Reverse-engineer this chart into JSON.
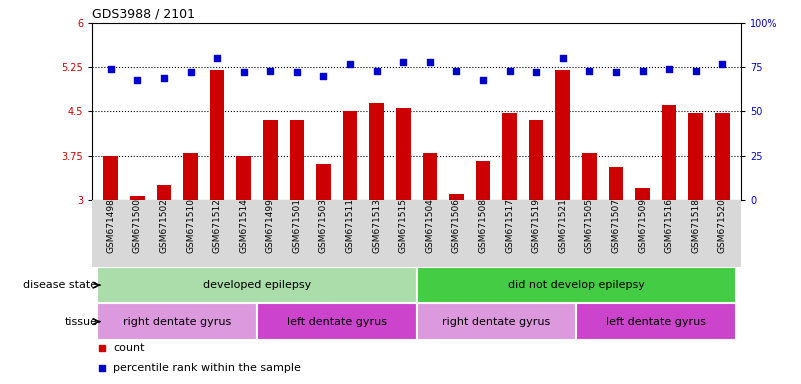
{
  "title": "GDS3988 / 2101",
  "samples": [
    "GSM671498",
    "GSM671500",
    "GSM671502",
    "GSM671510",
    "GSM671512",
    "GSM671514",
    "GSM671499",
    "GSM671501",
    "GSM671503",
    "GSM671511",
    "GSM671513",
    "GSM671515",
    "GSM671504",
    "GSM671506",
    "GSM671508",
    "GSM671517",
    "GSM671519",
    "GSM671521",
    "GSM671505",
    "GSM671507",
    "GSM671509",
    "GSM671516",
    "GSM671518",
    "GSM671520"
  ],
  "bar_values": [
    3.75,
    3.07,
    3.25,
    3.8,
    5.2,
    3.75,
    4.35,
    4.35,
    3.6,
    4.5,
    4.65,
    4.55,
    3.8,
    3.1,
    3.65,
    4.47,
    4.35,
    5.2,
    3.8,
    3.55,
    3.2,
    4.6,
    4.47,
    4.47
  ],
  "dot_values_pct": [
    74,
    68,
    69,
    72,
    80,
    72,
    73,
    72,
    70,
    77,
    73,
    78,
    78,
    73,
    68,
    73,
    72,
    80,
    73,
    72,
    73,
    74,
    73,
    77
  ],
  "ylim_left": [
    3.0,
    6.0
  ],
  "ylim_right": [
    0,
    100
  ],
  "yticks_left": [
    3.0,
    3.75,
    4.5,
    5.25,
    6.0
  ],
  "yticks_right": [
    0,
    25,
    50,
    75,
    100
  ],
  "ytick_labels_left": [
    "3",
    "3.75",
    "4.5",
    "5.25",
    "6"
  ],
  "ytick_labels_right": [
    "0",
    "25",
    "50",
    "75",
    "100%"
  ],
  "hlines": [
    3.75,
    4.5,
    5.25
  ],
  "bar_color": "#cc0000",
  "dot_color": "#0000cc",
  "plot_bg": "#ffffff",
  "xtick_bg": "#d8d8d8",
  "disease_groups": [
    {
      "label": "developed epilepsy",
      "start": 0,
      "end": 11,
      "color": "#aaddaa"
    },
    {
      "label": "did not develop epilepsy",
      "start": 12,
      "end": 23,
      "color": "#44cc44"
    }
  ],
  "tissue_groups": [
    {
      "label": "right dentate gyrus",
      "start": 0,
      "end": 5,
      "color": "#dd99dd"
    },
    {
      "label": "left dentate gyrus",
      "start": 6,
      "end": 11,
      "color": "#cc44cc"
    },
    {
      "label": "right dentate gyrus",
      "start": 12,
      "end": 17,
      "color": "#dd99dd"
    },
    {
      "label": "left dentate gyrus",
      "start": 18,
      "end": 23,
      "color": "#cc44cc"
    }
  ],
  "disease_label": "disease state",
  "tissue_label": "tissue",
  "legend_count_label": "count",
  "legend_pct_label": "percentile rank within the sample",
  "bar_width": 0.55,
  "title_fontsize": 9,
  "tick_fontsize": 6.5,
  "annot_fontsize": 8,
  "legend_fontsize": 8
}
